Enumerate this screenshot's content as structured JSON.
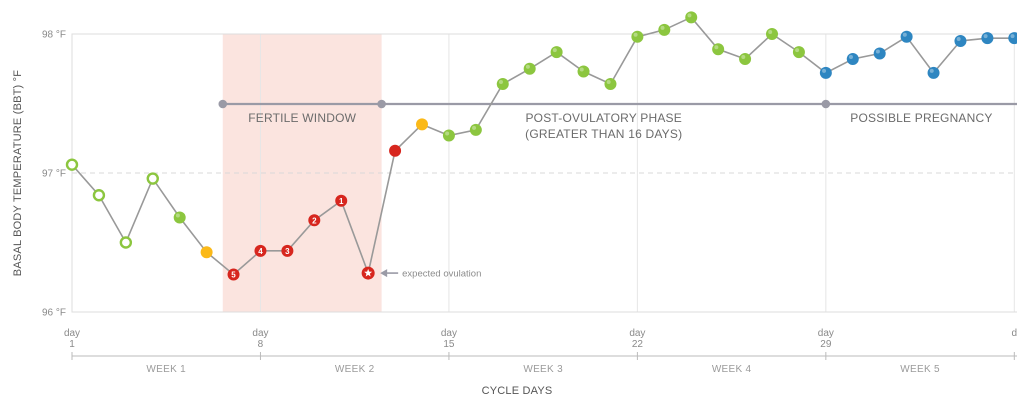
{
  "chart_data": {
    "type": "line",
    "ylabel": "BASAL BODY TEMPERATURE (BBT) °F",
    "xlabel": "CYCLE DAYS",
    "ylim": [
      96,
      98
    ],
    "xlim": [
      1,
      36.1
    ],
    "y_ticks": [
      {
        "value": 98,
        "label": "98 °F"
      },
      {
        "value": 97,
        "label": "97 °F"
      },
      {
        "value": 96,
        "label": "96 °F"
      }
    ],
    "x_ticks": [
      {
        "day": 1,
        "line1": "day",
        "line2": "1"
      },
      {
        "day": 8,
        "line1": "day",
        "line2": "8"
      },
      {
        "day": 15,
        "line1": "day",
        "line2": "15"
      },
      {
        "day": 22,
        "line1": "day",
        "line2": "22"
      },
      {
        "day": 29,
        "line1": "day",
        "line2": "29"
      },
      {
        "day": 36,
        "line1": "d",
        "line2": ""
      }
    ],
    "weeks": [
      {
        "label": "WEEK 1",
        "start": 1,
        "end": 8
      },
      {
        "label": "WEEK 2",
        "start": 8,
        "end": 15
      },
      {
        "label": "WEEK 3",
        "start": 15,
        "end": 22
      },
      {
        "label": "WEEK 4",
        "start": 22,
        "end": 29
      },
      {
        "label": "WEEK 5",
        "start": 29,
        "end": 36
      }
    ],
    "fertile_window": {
      "start": 6.6,
      "end": 12.5
    },
    "phases": [
      {
        "lines": [
          "FERTILE WINDOW"
        ],
        "start": 6.6,
        "end": 12.5
      },
      {
        "lines": [
          "POST-OVULATORY PHASE",
          "(GREATER THAN 16 DAYS)"
        ],
        "start": 12.5,
        "end": 29
      },
      {
        "lines": [
          "POSSIBLE PREGNANCY"
        ],
        "start": 29,
        "end": 36.1
      }
    ],
    "annotation": {
      "text": "expected ovulation",
      "day": 12
    }
  },
  "series": {
    "points": [
      {
        "day": 1,
        "temp": 97.06,
        "color": "#8cc63f",
        "style": "hollow"
      },
      {
        "day": 2,
        "temp": 96.84,
        "color": "#8cc63f",
        "style": "hollow"
      },
      {
        "day": 3,
        "temp": 96.5,
        "color": "#8cc63f",
        "style": "hollow"
      },
      {
        "day": 4,
        "temp": 96.96,
        "color": "#8cc63f",
        "style": "hollow"
      },
      {
        "day": 5,
        "temp": 96.68,
        "color": "#8cc63f",
        "style": "filled"
      },
      {
        "day": 6,
        "temp": 96.43,
        "color": "#fbb918",
        "style": "filled"
      },
      {
        "day": 7,
        "temp": 96.27,
        "color": "#d7261e",
        "style": "filled",
        "label": "5"
      },
      {
        "day": 8,
        "temp": 96.44,
        "color": "#d7261e",
        "style": "filled",
        "label": "4"
      },
      {
        "day": 9,
        "temp": 96.44,
        "color": "#d7261e",
        "style": "filled",
        "label": "3"
      },
      {
        "day": 10,
        "temp": 96.66,
        "color": "#d7261e",
        "style": "filled",
        "label": "2"
      },
      {
        "day": 11,
        "temp": 96.8,
        "color": "#d7261e",
        "style": "filled",
        "label": "1"
      },
      {
        "day": 12,
        "temp": 96.28,
        "color": "#d7261e",
        "style": "star"
      },
      {
        "day": 13,
        "temp": 97.16,
        "color": "#d7261e",
        "style": "filled"
      },
      {
        "day": 14,
        "temp": 97.35,
        "color": "#fbb918",
        "style": "filled"
      },
      {
        "day": 15,
        "temp": 97.27,
        "color": "#8cc63f",
        "style": "filled"
      },
      {
        "day": 16,
        "temp": 97.31,
        "color": "#8cc63f",
        "style": "filled"
      },
      {
        "day": 17,
        "temp": 97.64,
        "color": "#8cc63f",
        "style": "filled"
      },
      {
        "day": 18,
        "temp": 97.75,
        "color": "#8cc63f",
        "style": "filled"
      },
      {
        "day": 19,
        "temp": 97.87,
        "color": "#8cc63f",
        "style": "filled"
      },
      {
        "day": 20,
        "temp": 97.73,
        "color": "#8cc63f",
        "style": "filled"
      },
      {
        "day": 21,
        "temp": 97.64,
        "color": "#8cc63f",
        "style": "filled"
      },
      {
        "day": 22,
        "temp": 97.98,
        "color": "#8cc63f",
        "style": "filled"
      },
      {
        "day": 23,
        "temp": 98.03,
        "color": "#8cc63f",
        "style": "filled"
      },
      {
        "day": 24,
        "temp": 98.12,
        "color": "#8cc63f",
        "style": "filled"
      },
      {
        "day": 25,
        "temp": 97.89,
        "color": "#8cc63f",
        "style": "filled"
      },
      {
        "day": 26,
        "temp": 97.82,
        "color": "#8cc63f",
        "style": "filled"
      },
      {
        "day": 27,
        "temp": 98.0,
        "color": "#8cc63f",
        "style": "filled"
      },
      {
        "day": 28,
        "temp": 97.87,
        "color": "#8cc63f",
        "style": "filled"
      },
      {
        "day": 29,
        "temp": 97.72,
        "color": "#2e86c1",
        "style": "filled"
      },
      {
        "day": 30,
        "temp": 97.82,
        "color": "#2e86c1",
        "style": "filled"
      },
      {
        "day": 31,
        "temp": 97.86,
        "color": "#2e86c1",
        "style": "filled"
      },
      {
        "day": 32,
        "temp": 97.98,
        "color": "#2e86c1",
        "style": "filled"
      },
      {
        "day": 33,
        "temp": 97.72,
        "color": "#2e86c1",
        "style": "filled"
      },
      {
        "day": 34,
        "temp": 97.95,
        "color": "#2e86c1",
        "style": "filled"
      },
      {
        "day": 35,
        "temp": 97.97,
        "color": "#2e86c1",
        "style": "filled"
      },
      {
        "day": 36,
        "temp": 97.97,
        "color": "#2e86c1",
        "style": "filled"
      }
    ]
  },
  "colors": {
    "line": "#999999",
    "fertile_band": "#fbe4df",
    "phase_line": "#9a9aa6",
    "grid": "#e6e6e6"
  }
}
